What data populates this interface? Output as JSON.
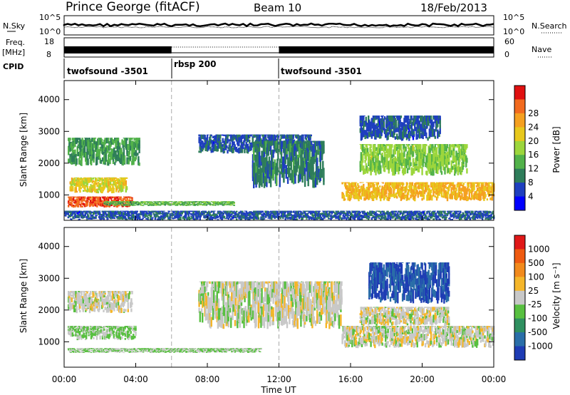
{
  "header": {
    "station": "Prince George (fitACF)",
    "beam": "Beam 10",
    "date": "18/Feb/2013"
  },
  "labels": {
    "nsky": "N.Sky",
    "nsearch": "N.Search",
    "freq_a": "Freq.",
    "freq_b": "[MHz]",
    "nave": "Nave",
    "cpid": "CPID",
    "power_unit": "Power [dB]",
    "velocity_unit": "Velocity [m s⁻¹]",
    "ylabel": "Slant Range [km]",
    "xlabel": "Time UT"
  },
  "noise_axis": {
    "left": [
      "10^5",
      "10^0"
    ],
    "right": [
      "10^5",
      "10^0"
    ]
  },
  "freq_axis": {
    "left": [
      "18",
      "8"
    ],
    "right": [
      "60",
      "0"
    ]
  },
  "cpid_segments": [
    {
      "label": "twofsound -3501",
      "start": "00:00",
      "end": "06:00"
    },
    {
      "label": "rbsp 200",
      "start": "06:00",
      "end": "12:00"
    },
    {
      "label": "twofsound -3501",
      "start": "12:00",
      "end": "24:00"
    }
  ],
  "time_ticks": [
    "00:00",
    "04:00",
    "08:00",
    "12:00",
    "16:00",
    "20:00",
    "00:00"
  ],
  "range_ticks": [
    "1000",
    "2000",
    "3000",
    "4000"
  ],
  "power_scale": {
    "labels": [
      "4",
      "8",
      "12",
      "16",
      "20",
      "24",
      "28"
    ],
    "colors": [
      "#0000ff",
      "#1f3fbf",
      "#2e7d5a",
      "#52b24a",
      "#9cd63c",
      "#e8c81c",
      "#f5a020",
      "#f26a1e",
      "#e01010"
    ]
  },
  "velocity_scale": {
    "labels": [
      "1000",
      "500",
      "100",
      "25",
      "-25",
      "-100",
      "-500",
      "-1000"
    ],
    "colors": [
      "#1e3cb4",
      "#2a6ea8",
      "#2f9060",
      "#58c040",
      "#c8c8c8",
      "#f5b62a",
      "#f28a1c",
      "#ef5a10",
      "#e01818"
    ]
  },
  "chart_data": [
    {
      "type": "heatmap",
      "name": "power",
      "xlabel": "Time UT",
      "ylabel": "Slant Range [km]",
      "colorbar_label": "Power [dB]",
      "xlim": [
        "00:00",
        "24:00"
      ],
      "ylim": [
        200,
        4600
      ],
      "clim": [
        0,
        30
      ],
      "regions": [
        {
          "t0": 0.2,
          "t1": 3.8,
          "r0": 600,
          "r1": 950,
          "value": 26
        },
        {
          "t0": 0.3,
          "t1": 3.5,
          "r0": 1050,
          "r1": 1550,
          "value": 18
        },
        {
          "t0": 0.2,
          "t1": 4.2,
          "r0": 1900,
          "r1": 2800,
          "value": 10
        },
        {
          "t0": 2.2,
          "t1": 9.5,
          "r0": 650,
          "r1": 800,
          "value": 12
        },
        {
          "t0": 7.5,
          "t1": 13.8,
          "r0": 2300,
          "r1": 2900,
          "value": 6
        },
        {
          "t0": 10.5,
          "t1": 14.5,
          "r0": 1200,
          "r1": 2700,
          "value": 8
        },
        {
          "t0": 15.5,
          "t1": 24.0,
          "r0": 800,
          "r1": 1400,
          "value": 20
        },
        {
          "t0": 16.5,
          "t1": 22.5,
          "r0": 1600,
          "r1": 2600,
          "value": 14
        },
        {
          "t0": 16.5,
          "t1": 21.0,
          "r0": 2700,
          "r1": 3500,
          "value": 6
        },
        {
          "t0": 0.0,
          "t1": 24.0,
          "r0": 200,
          "r1": 500,
          "value": 6
        }
      ]
    },
    {
      "type": "heatmap",
      "name": "velocity",
      "xlabel": "Time UT",
      "ylabel": "Slant Range [km]",
      "colorbar_label": "Velocity [m s⁻¹]",
      "xlim": [
        "00:00",
        "24:00"
      ],
      "ylim": [
        200,
        4600
      ],
      "clim": [
        -1000,
        1000
      ],
      "regions": [
        {
          "t0": 0.2,
          "t1": 4.0,
          "r0": 1050,
          "r1": 1500,
          "value": -150
        },
        {
          "t0": 0.2,
          "t1": 11.0,
          "r0": 650,
          "r1": 800,
          "value": -120
        },
        {
          "t0": 0.2,
          "t1": 3.8,
          "r0": 1900,
          "r1": 2600,
          "value": 0
        },
        {
          "t0": 7.5,
          "t1": 15.5,
          "r0": 1400,
          "r1": 2900,
          "value": 0
        },
        {
          "t0": 15.5,
          "t1": 24.0,
          "r0": 800,
          "r1": 1500,
          "value": 0
        },
        {
          "t0": 17.0,
          "t1": 21.5,
          "r0": 2200,
          "r1": 3500,
          "value": -800
        },
        {
          "t0": 16.5,
          "t1": 21.5,
          "r0": 1500,
          "r1": 2100,
          "value": 0
        }
      ]
    }
  ]
}
